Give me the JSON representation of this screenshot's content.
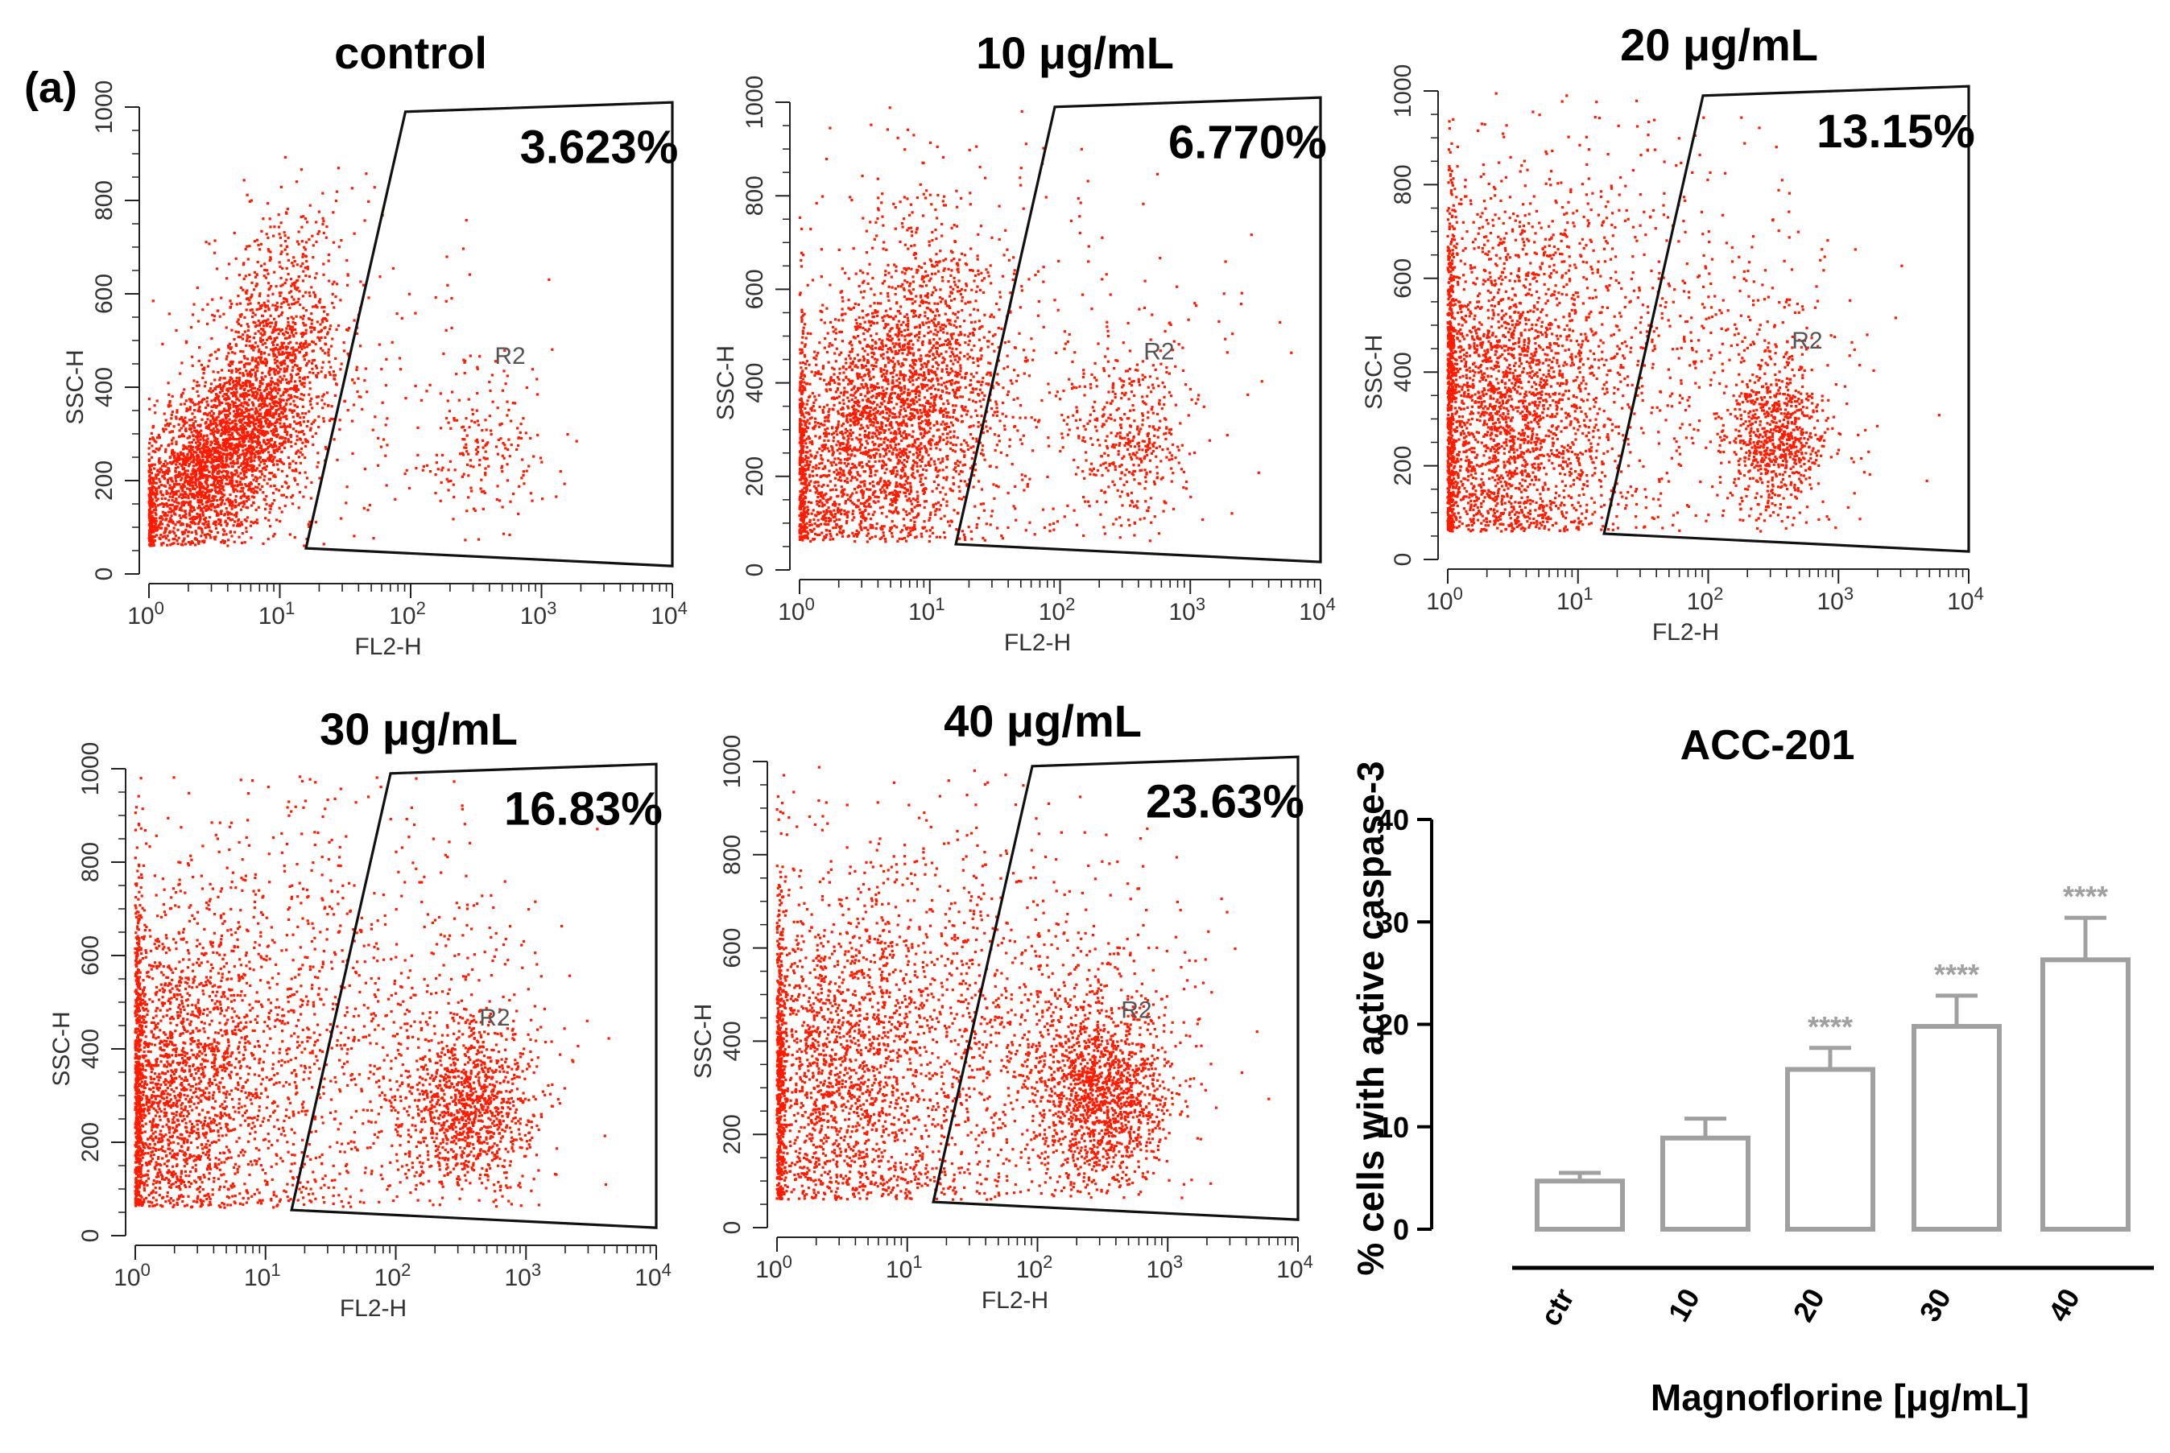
{
  "panel_label": "(a)",
  "chart_data": [
    {
      "type": "scatter",
      "title": "control",
      "gate_percent": "3.623%",
      "gate_label": "R2",
      "xlabel": "FL2-H",
      "ylabel": "SSC-H",
      "x_scale": "log",
      "xlim": [
        1,
        10000
      ],
      "ylim": [
        0,
        1000
      ],
      "x_ticks": [
        {
          "base": "10",
          "exp": "0"
        },
        {
          "base": "10",
          "exp": "1"
        },
        {
          "base": "10",
          "exp": "2"
        },
        {
          "base": "10",
          "exp": "3"
        },
        {
          "base": "10",
          "exp": "4"
        }
      ],
      "y_ticks": [
        "0",
        "200",
        "400",
        "600",
        "800",
        "1000"
      ],
      "point_color": "#ff1a00"
    },
    {
      "type": "scatter",
      "title": "10 μg/mL",
      "gate_percent": "6.770%",
      "gate_label": "R2",
      "xlabel": "FL2-H",
      "ylabel": "SSC-H",
      "x_scale": "log",
      "xlim": [
        1,
        10000
      ],
      "ylim": [
        0,
        1000
      ],
      "x_ticks": [
        {
          "base": "10",
          "exp": "0"
        },
        {
          "base": "10",
          "exp": "1"
        },
        {
          "base": "10",
          "exp": "2"
        },
        {
          "base": "10",
          "exp": "3"
        },
        {
          "base": "10",
          "exp": "4"
        }
      ],
      "y_ticks": [
        "0",
        "200",
        "400",
        "600",
        "800",
        "1000"
      ],
      "point_color": "#ff1a00"
    },
    {
      "type": "scatter",
      "title": "20 μg/mL",
      "gate_percent": "13.15%",
      "gate_label": "R2",
      "xlabel": "FL2-H",
      "ylabel": "SSC-H",
      "x_scale": "log",
      "xlim": [
        1,
        10000
      ],
      "ylim": [
        0,
        1000
      ],
      "x_ticks": [
        {
          "base": "10",
          "exp": "0"
        },
        {
          "base": "10",
          "exp": "1"
        },
        {
          "base": "10",
          "exp": "2"
        },
        {
          "base": "10",
          "exp": "3"
        },
        {
          "base": "10",
          "exp": "4"
        }
      ],
      "y_ticks": [
        "0",
        "200",
        "400",
        "600",
        "800",
        "1000"
      ],
      "point_color": "#ff1a00"
    },
    {
      "type": "scatter",
      "title": "30 μg/mL",
      "gate_percent": "16.83%",
      "gate_label": "R2",
      "xlabel": "FL2-H",
      "ylabel": "SSC-H",
      "x_scale": "log",
      "xlim": [
        1,
        10000
      ],
      "ylim": [
        0,
        1000
      ],
      "x_ticks": [
        {
          "base": "10",
          "exp": "0"
        },
        {
          "base": "10",
          "exp": "1"
        },
        {
          "base": "10",
          "exp": "2"
        },
        {
          "base": "10",
          "exp": "3"
        },
        {
          "base": "10",
          "exp": "4"
        }
      ],
      "y_ticks": [
        "0",
        "200",
        "400",
        "600",
        "800",
        "1000"
      ],
      "point_color": "#ff1a00"
    },
    {
      "type": "scatter",
      "title": "40 μg/mL",
      "gate_percent": "23.63%",
      "gate_label": "R2",
      "xlabel": "FL2-H",
      "ylabel": "SSC-H",
      "x_scale": "log",
      "xlim": [
        1,
        10000
      ],
      "ylim": [
        0,
        1000
      ],
      "x_ticks": [
        {
          "base": "10",
          "exp": "0"
        },
        {
          "base": "10",
          "exp": "1"
        },
        {
          "base": "10",
          "exp": "2"
        },
        {
          "base": "10",
          "exp": "3"
        },
        {
          "base": "10",
          "exp": "4"
        }
      ],
      "y_ticks": [
        "0",
        "200",
        "400",
        "600",
        "800",
        "1000"
      ],
      "point_color": "#ff1a00"
    },
    {
      "type": "bar",
      "title": "ACC-201",
      "xlabel": "Magnoflorine [μg/mL]",
      "ylabel": "% cells with active caspase-3",
      "categories": [
        "ctr",
        "10",
        "20",
        "30",
        "40"
      ],
      "values": [
        4.7,
        8.9,
        15.6,
        19.8,
        26.3
      ],
      "errors": [
        0.8,
        1.9,
        2.1,
        3.0,
        4.1
      ],
      "significance": [
        "",
        "",
        "****",
        "****",
        "****"
      ],
      "ylim": [
        0,
        40
      ],
      "y_ticks": [
        "0",
        "10",
        "20",
        "30",
        "40"
      ],
      "bar_color": "#a0a0a0"
    }
  ]
}
